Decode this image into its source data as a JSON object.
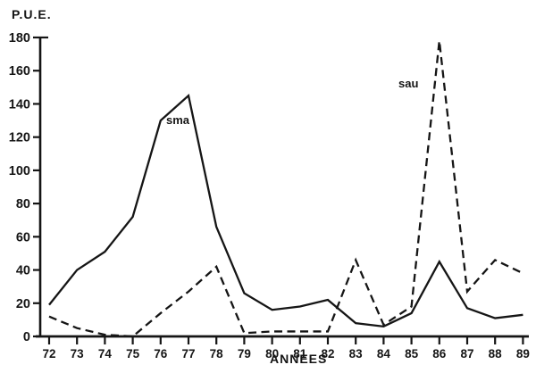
{
  "figure": {
    "y_axis_title": "P.U.E.",
    "x_axis_title": "ANNEES",
    "series_labels": {
      "sma": "sma",
      "sau": "sau"
    }
  },
  "chart_data": {
    "type": "line",
    "title": "",
    "xlabel": "ANNEES",
    "ylabel": "P.U.E.",
    "categories": [
      "72",
      "73",
      "74",
      "75",
      "76",
      "77",
      "78",
      "79",
      "80",
      "81",
      "82",
      "83",
      "84",
      "85",
      "86",
      "87",
      "88",
      "89"
    ],
    "ylim": [
      0,
      180
    ],
    "yticks": [
      0,
      20,
      40,
      60,
      80,
      100,
      120,
      140,
      160,
      180
    ],
    "grid": false,
    "legend_position": "inline-labels",
    "line_color": "#151515",
    "background_color": "#ffffff",
    "series": [
      {
        "name": "sma",
        "style": "solid",
        "values": [
          19,
          40,
          51,
          72,
          130,
          145,
          66,
          26,
          16,
          18,
          22,
          8,
          6,
          14,
          45,
          17,
          11,
          13
        ]
      },
      {
        "name": "sau",
        "style": "dashed",
        "values": [
          12,
          5,
          1,
          0,
          14,
          27,
          42,
          2,
          3,
          3,
          3,
          46,
          7,
          18,
          178,
          27,
          46,
          38
        ]
      }
    ]
  }
}
